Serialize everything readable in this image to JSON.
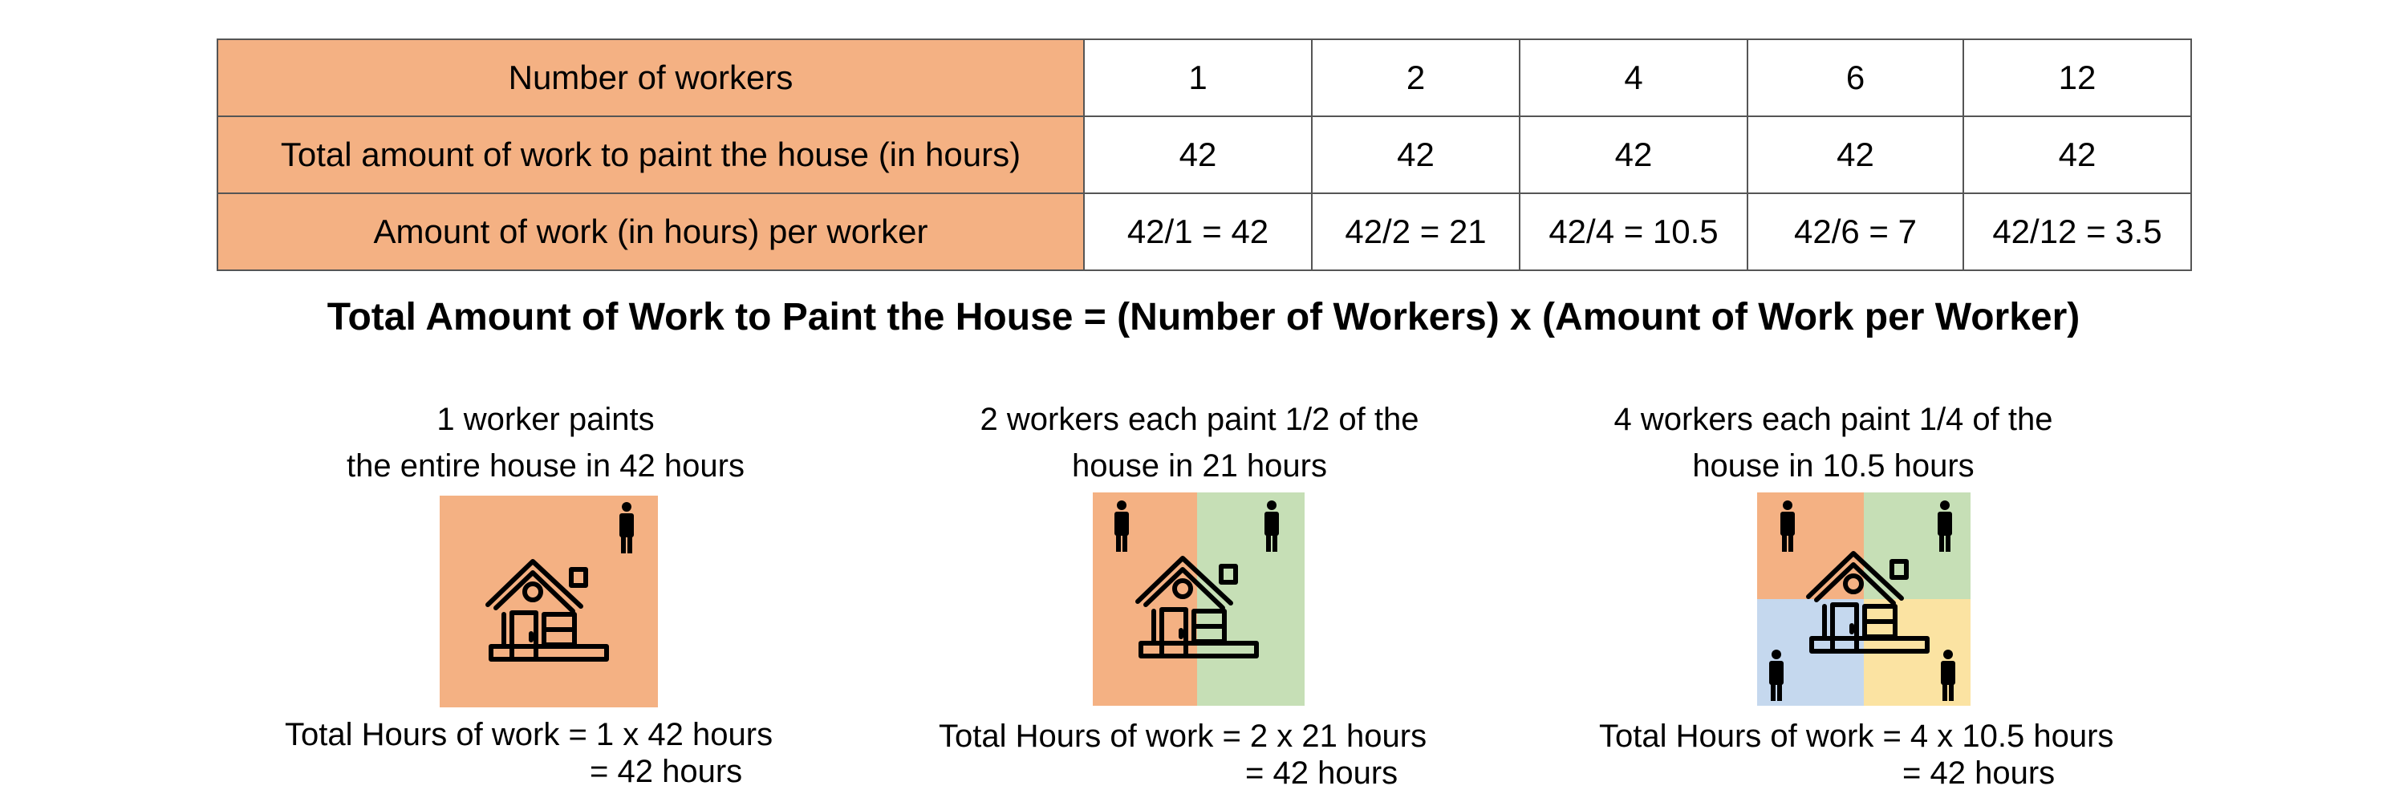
{
  "table": {
    "rows": [
      {
        "header": "Number of workers",
        "cells": [
          "1",
          "2",
          "4",
          "6",
          "12"
        ]
      },
      {
        "header": "Total amount of work to paint the house (in hours)",
        "cells": [
          "42",
          "42",
          "42",
          "42",
          "42"
        ]
      },
      {
        "header": "Amount of work (in hours) per worker",
        "cells": [
          "42/1 = 42",
          "42/2 = 21",
          "42/4 = 10.5",
          "42/6 = 7",
          "42/12 = 3.5"
        ]
      }
    ]
  },
  "formula": "Total Amount of Work to Paint the House = (Number of Workers) x (Amount of Work per Worker)",
  "panels": [
    {
      "caption_line1": "1 worker paints",
      "caption_line2": "the entire house in 42 hours",
      "total_line1": "Total Hours of work = 1 x 42 hours",
      "total_line2": "= 42 hours",
      "icon": "house-icon"
    },
    {
      "caption_line1": "2 workers each paint 1/2 of the",
      "caption_line2": "house in 21 hours",
      "total_line1": "Total Hours of work = 2 x 21 hours",
      "total_line2": "= 42 hours",
      "icon": "house-icon"
    },
    {
      "caption_line1": "4 workers each paint 1/4 of the",
      "caption_line2": "house in 10.5 hours",
      "total_line1": "Total Hours of work = 4 x 10.5 hours",
      "total_line2": "= 42 hours",
      "icon": "house-icon"
    }
  ],
  "colors": {
    "orange": "#f4b183",
    "green": "#c6dfb6",
    "blue": "#c5d8ee",
    "yellow": "#fbe3a2"
  }
}
